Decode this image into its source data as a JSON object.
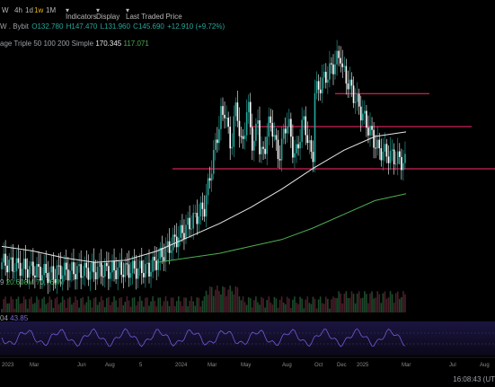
{
  "toolbar": {
    "items": [
      "W",
      "4h",
      "1d",
      "1w",
      "1M",
      "Indicators",
      "Display",
      "Last Traded Price"
    ],
    "active": "1w"
  },
  "ohlc": {
    "symbol": "W . Bybit",
    "open": "O132.780",
    "high": "H147.470",
    "low": "L131.960",
    "close": "C145.690",
    "change": "+12.910 (+9.72%)"
  },
  "ma": {
    "label": "age Triple 50 100 200 Simple",
    "value1": "170.345",
    "value2": "117.071"
  },
  "volume": {
    "prefix": "9",
    "value1": "20.608M",
    "value2": "70.765M"
  },
  "rsi": {
    "prefix": "04",
    "value": "43.85"
  },
  "axis_labels": [
    "2023",
    "Mar",
    "Jun",
    "Aug",
    "5",
    "2024",
    "Mar",
    "May",
    "Aug",
    "Oct",
    "Dec",
    "2025",
    "Mar",
    "Jul",
    "Aug"
  ],
  "timestamp": "16:08:43 (UT",
  "colors": {
    "bull": "#26a69a",
    "bear": "#ffffff",
    "red": "#ff2a6d",
    "ma_white": "#e6e6e6",
    "ma_green": "#4caf50",
    "rsi": "#6f5bd8"
  },
  "chart_data": {
    "type": "candlestick",
    "x": [
      "2023-01",
      "2023-03",
      "2023-06",
      "2023-08",
      "2023-09",
      "2023-11",
      "2024-01",
      "2024-03",
      "2024-05",
      "2024-08",
      "2024-10",
      "2024-12",
      "2025-01",
      "2025-02"
    ],
    "close_series": [
      98,
      101,
      103,
      104,
      106,
      108,
      140,
      155,
      170,
      172,
      176,
      190,
      168,
      146
    ],
    "horizontal_levels": [
      170,
      160,
      146
    ],
    "ma_white_series": [
      108,
      106,
      103,
      101,
      102,
      106,
      112,
      118,
      125,
      133,
      142,
      150,
      156,
      158
    ],
    "ma_green_series": [
      null,
      null,
      null,
      null,
      null,
      101,
      103,
      105,
      108,
      111,
      116,
      122,
      128,
      131
    ],
    "volume_values": [
      20.608,
      70.765
    ],
    "rsi_value": 43.85
  }
}
